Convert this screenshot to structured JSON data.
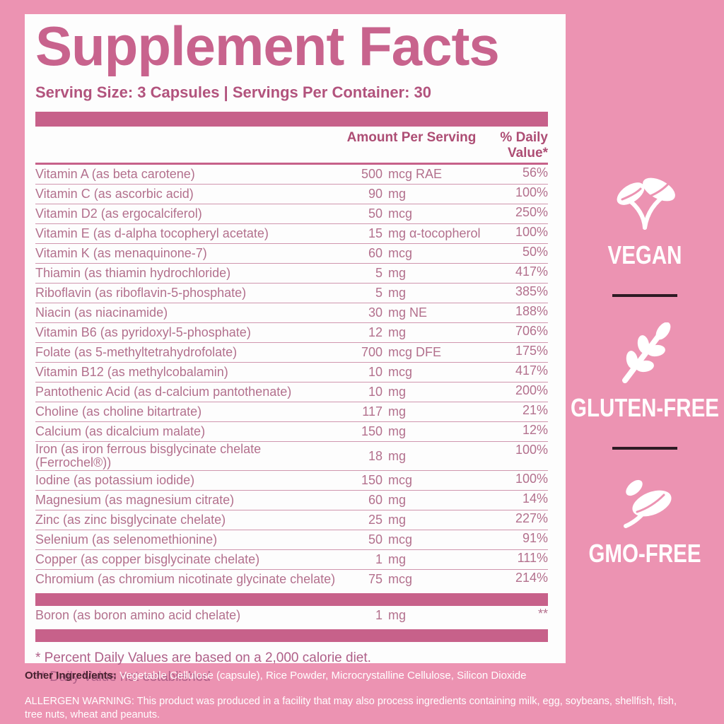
{
  "panel": {
    "title": "Supplement Facts",
    "serving_line": "Serving Size: 3 Capsules | Servings Per Container: 30",
    "columns": {
      "amount": "Amount Per Serving",
      "daily_value": "% Daily Value*"
    },
    "rows": [
      {
        "name": "Vitamin A (as beta carotene)",
        "amount": "500",
        "unit": "mcg RAE",
        "dv": "56%"
      },
      {
        "name": "Vitamin C (as ascorbic acid)",
        "amount": "90",
        "unit": "mg",
        "dv": "100%"
      },
      {
        "name": "Vitamin D2 (as ergocalciferol)",
        "amount": "50",
        "unit": "mcg",
        "dv": "250%"
      },
      {
        "name": "Vitamin E (as d-alpha tocopheryl acetate)",
        "amount": "15",
        "unit": "mg α-tocopherol",
        "dv": "100%"
      },
      {
        "name": "Vitamin K (as menaquinone-7)",
        "amount": "60",
        "unit": "mcg",
        "dv": "50%"
      },
      {
        "name": "Thiamin (as thiamin hydrochloride)",
        "amount": "5",
        "unit": "mg",
        "dv": "417%"
      },
      {
        "name": "Riboflavin (as riboflavin-5-phosphate)",
        "amount": "5",
        "unit": "mg",
        "dv": "385%"
      },
      {
        "name": "Niacin (as niacinamide)",
        "amount": "30",
        "unit": "mg NE",
        "dv": "188%"
      },
      {
        "name": "Vitamin B6 (as pyridoxyl-5-phosphate)",
        "amount": "12",
        "unit": "mg",
        "dv": "706%"
      },
      {
        "name": "Folate (as 5-methyltetrahydrofolate)",
        "amount": "700",
        "unit": "mcg DFE",
        "dv": "175%"
      },
      {
        "name": "Vitamin B12 (as methylcobalamin)",
        "amount": "10",
        "unit": "mcg",
        "dv": "417%"
      },
      {
        "name": "Pantothenic Acid (as d-calcium pantothenate)",
        "amount": "10",
        "unit": "mg",
        "dv": "200%"
      },
      {
        "name": "Choline (as choline bitartrate)",
        "amount": "117",
        "unit": "mg",
        "dv": "21%"
      },
      {
        "name": "Calcium (as dicalcium malate)",
        "amount": "150",
        "unit": "mg",
        "dv": "12%"
      },
      {
        "name": "Iron (as iron ferrous bisglycinate chelate (Ferrochel®))",
        "amount": "18",
        "unit": "mg",
        "dv": "100%"
      },
      {
        "name": "Iodine (as potassium iodide)",
        "amount": "150",
        "unit": "mcg",
        "dv": "100%"
      },
      {
        "name": "Magnesium (as magnesium citrate)",
        "amount": "60",
        "unit": "mg",
        "dv": "14%"
      },
      {
        "name": "Zinc (as zinc bisglycinate chelate)",
        "amount": "25",
        "unit": "mg",
        "dv": "227%"
      },
      {
        "name": "Selenium (as selenomethionine)",
        "amount": "50",
        "unit": "mcg",
        "dv": "91%"
      },
      {
        "name": "Copper (as copper bisglycinate chelate)",
        "amount": "1",
        "unit": "mg",
        "dv": "111%"
      },
      {
        "name": "Chromium (as chromium nicotinate glycinate chelate)",
        "amount": "75",
        "unit": "mcg",
        "dv": "214%"
      }
    ],
    "boron_row": {
      "name": "Boron (as boron amino acid chelate)",
      "amount": "1",
      "unit": "mg",
      "dv": "**"
    },
    "footnotes": [
      "* Percent Daily Values are based on a 2,000 calorie diet.",
      "** Daily Value not established"
    ]
  },
  "badges": [
    {
      "label": "VEGAN",
      "icon": "vegan-leaves-icon"
    },
    {
      "label": "GLUTEN-FREE",
      "icon": "wheat-icon"
    },
    {
      "label": "GMO-FREE",
      "icon": "leaf-icon"
    }
  ],
  "bottom": {
    "other_ingredients_label": "Other Ingredients:",
    "other_ingredients_text": " Vegetable Cellulose (capsule), Rice Powder, Microcrystalline Cellulose, Silicon Dioxide",
    "allergen_warning": "ALLERGEN WARNING: This product was produced in a facility that may also process ingredients containing milk, egg, soybeans, shellfish, fish, tree nuts, wheat and peanuts."
  },
  "colors": {
    "background_pink": "#ec93b2",
    "card_white": "#fdfdfd",
    "bar_pink": "#c7618a",
    "title_pink": "#c8638d",
    "row_text_pink": "#b3708d",
    "header_text_pink": "#ad4d74",
    "badge_divider_dark": "#2e1b24",
    "badge_text_white": "#ffffff"
  }
}
